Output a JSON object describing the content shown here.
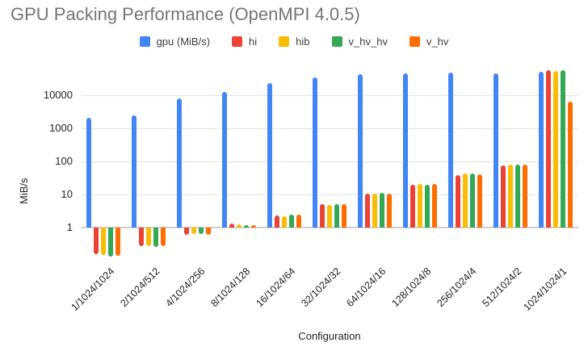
{
  "chart_data": {
    "type": "bar",
    "title": "GPU Packing Performance (OpenMPI 4.0.5)",
    "xlabel": "Configuration",
    "ylabel": "MiB/s",
    "y_scale": "log",
    "y_ticks": [
      1,
      10,
      100,
      1000,
      10000
    ],
    "ylim": [
      0.1,
      100000
    ],
    "grid": true,
    "legend_position": "top",
    "categories": [
      "1/1024/1024",
      "2/1024/512",
      "4/1024/256",
      "8/1024/128",
      "16/1024/64",
      "32/1024/32",
      "64/1024/16",
      "128/1024/8",
      "256/1024/4",
      "512/1024/2",
      "1024/1024/1"
    ],
    "series": [
      {
        "name": "gpu (MiB/s)",
        "color": "#4285F4",
        "values": [
          2100,
          2400,
          8200,
          12500,
          23000,
          35000,
          43000,
          46000,
          48000,
          46000,
          51000
        ]
      },
      {
        "name": "hi",
        "color": "#EA4335",
        "values": [
          0.16,
          0.28,
          0.6,
          1.3,
          2.3,
          5.0,
          10.5,
          20,
          38,
          75,
          57000
        ]
      },
      {
        "name": "hib",
        "color": "#FBBC04",
        "values": [
          0.15,
          0.27,
          0.65,
          1.25,
          2.2,
          4.8,
          10.5,
          20.5,
          44,
          82,
          53000
        ]
      },
      {
        "name": "v_hv_hv",
        "color": "#34A853",
        "values": [
          0.13,
          0.26,
          0.65,
          1.2,
          2.4,
          5.0,
          11,
          20,
          42,
          78,
          58000
        ]
      },
      {
        "name": "v_hv",
        "color": "#FF6D01",
        "values": [
          0.14,
          0.27,
          0.6,
          1.2,
          2.4,
          5.2,
          10.5,
          21,
          40,
          80,
          6500
        ]
      }
    ]
  },
  "colors": {
    "title_text": "#757575",
    "axis_text": "#222222",
    "legend_text": "#3c4043",
    "gridline": "#e3e3e3",
    "baseline": "#cfcfcf",
    "background": "#ffffff"
  }
}
